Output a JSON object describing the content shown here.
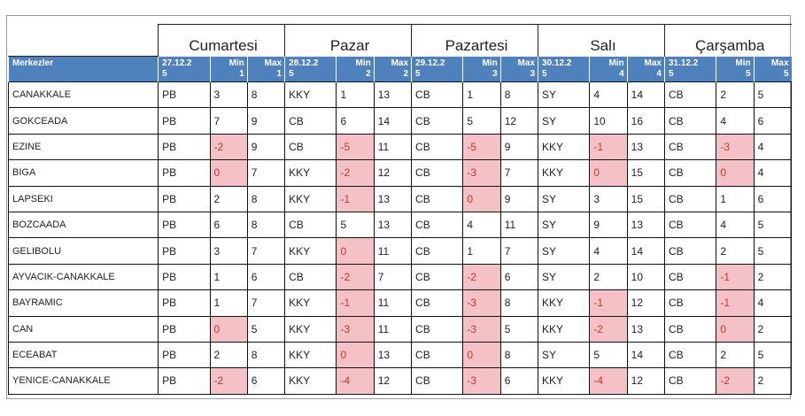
{
  "header": {
    "first_col": "Merkezler",
    "days": [
      {
        "name": "Cumartesi",
        "date": "27.12.2\n5",
        "min": "Min\n1",
        "max": "Max\n1"
      },
      {
        "name": "Pazar",
        "date": "28.12.2\n5",
        "min": "Min\n2",
        "max": "Max\n2"
      },
      {
        "name": "Pazartesi",
        "date": "29.12.2\n5",
        "min": "Min\n3",
        "max": "Max\n3"
      },
      {
        "name": "Salı",
        "date": "30.12.2\n5",
        "min": "Min\n4",
        "max": "Max\n4"
      },
      {
        "name": "Çarşamba",
        "date": "31.12.2\n5",
        "min": "Min\n5",
        "max": "Max\n5"
      }
    ]
  },
  "rows": [
    {
      "city": "CANAKKALE",
      "cells": [
        [
          "PB",
          "3",
          "8"
        ],
        [
          "KKY",
          "1",
          "13"
        ],
        [
          "CB",
          "1",
          "8"
        ],
        [
          "SY",
          "4",
          "14"
        ],
        [
          "CB",
          "2",
          "5"
        ]
      ]
    },
    {
      "city": "GOKCEADA",
      "cells": [
        [
          "PB",
          "7",
          "9"
        ],
        [
          "CB",
          "6",
          "14"
        ],
        [
          "CB",
          "5",
          "12"
        ],
        [
          "SY",
          "10",
          "16"
        ],
        [
          "CB",
          "4",
          "6"
        ]
      ]
    },
    {
      "city": "EZINE",
      "cells": [
        [
          "PB",
          "-2",
          "9"
        ],
        [
          "CB",
          "-5",
          "11"
        ],
        [
          "CB",
          "-5",
          "9"
        ],
        [
          "KKY",
          "-1",
          "13"
        ],
        [
          "CB",
          "-3",
          "4"
        ]
      ]
    },
    {
      "city": "BIGA",
      "cells": [
        [
          "PB",
          "0",
          "7"
        ],
        [
          "KKY",
          "-2",
          "12"
        ],
        [
          "CB",
          "-3",
          "7"
        ],
        [
          "KKY",
          "0",
          "15"
        ],
        [
          "CB",
          "0",
          "4"
        ]
      ]
    },
    {
      "city": "LAPSEKI",
      "cells": [
        [
          "PB",
          "2",
          "8"
        ],
        [
          "KKY",
          "-1",
          "13"
        ],
        [
          "CB",
          "0",
          "9"
        ],
        [
          "SY",
          "3",
          "15"
        ],
        [
          "CB",
          "1",
          "6"
        ]
      ]
    },
    {
      "city": "BOZCAADA",
      "cells": [
        [
          "PB",
          "6",
          "8"
        ],
        [
          "CB",
          "5",
          "13"
        ],
        [
          "CB",
          "4",
          "11"
        ],
        [
          "SY",
          "9",
          "13"
        ],
        [
          "CB",
          "4",
          "5"
        ]
      ]
    },
    {
      "city": "GELIBOLU",
      "cells": [
        [
          "PB",
          "3",
          "7"
        ],
        [
          "KKY",
          "0",
          "11"
        ],
        [
          "CB",
          "1",
          "7"
        ],
        [
          "SY",
          "4",
          "14"
        ],
        [
          "CB",
          "2",
          "5"
        ]
      ]
    },
    {
      "city": "AYVACIK-CANAKKALE",
      "cells": [
        [
          "PB",
          "1",
          "6"
        ],
        [
          "CB",
          "-2",
          "7"
        ],
        [
          "CB",
          "-2",
          "6"
        ],
        [
          "SY",
          "2",
          "10"
        ],
        [
          "CB",
          "-1",
          "2"
        ]
      ]
    },
    {
      "city": "BAYRAMIC",
      "cells": [
        [
          "PB",
          "1",
          "7"
        ],
        [
          "KKY",
          "-1",
          "11"
        ],
        [
          "CB",
          "-3",
          "8"
        ],
        [
          "KKY",
          "-1",
          "12"
        ],
        [
          "CB",
          "-1",
          "4"
        ]
      ]
    },
    {
      "city": "CAN",
      "cells": [
        [
          "PB",
          "0",
          "5"
        ],
        [
          "KKY",
          "-3",
          "11"
        ],
        [
          "CB",
          "-3",
          "5"
        ],
        [
          "KKY",
          "-2",
          "13"
        ],
        [
          "CB",
          "0",
          "2"
        ]
      ]
    },
    {
      "city": "ECEABAT",
      "cells": [
        [
          "PB",
          "2",
          "8"
        ],
        [
          "KKY",
          "0",
          "13"
        ],
        [
          "CB",
          "0",
          "8"
        ],
        [
          "SY",
          "5",
          "14"
        ],
        [
          "CB",
          "2",
          "5"
        ]
      ]
    },
    {
      "city": "YENICE-CANAKKALE",
      "cells": [
        [
          "PB",
          "-2",
          "6"
        ],
        [
          "KKY",
          "-4",
          "12"
        ],
        [
          "CB",
          "-3",
          "6"
        ],
        [
          "KKY",
          "-4",
          "12"
        ],
        [
          "CB",
          "-2",
          "2"
        ]
      ]
    }
  ],
  "colors": {
    "header_bg": "#4f81bd",
    "cold_highlight": "#f4c2c6",
    "negative_text": "#c0392b"
  }
}
